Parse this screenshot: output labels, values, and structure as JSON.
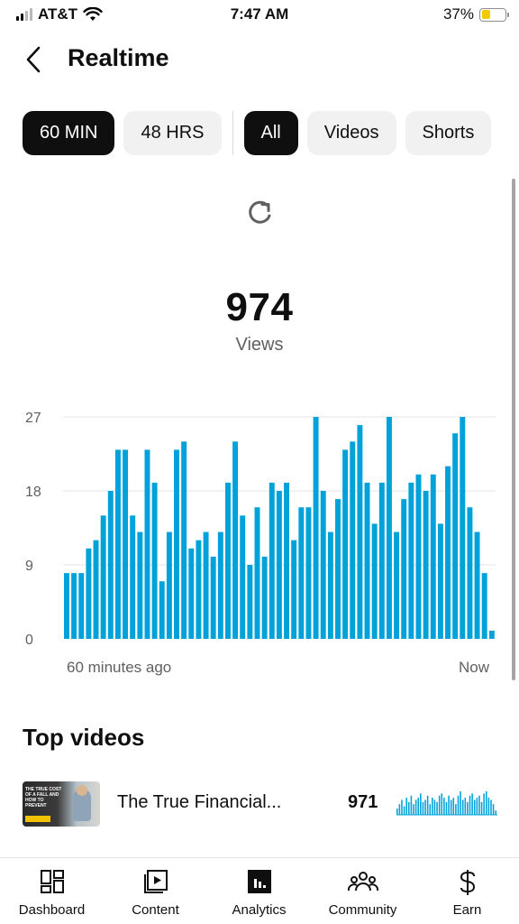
{
  "status_bar": {
    "carrier": "AT&T",
    "time": "7:47 AM",
    "battery_percent": "37%",
    "battery_level": 0.37,
    "battery_color": "#f5c900"
  },
  "header": {
    "title": "Realtime",
    "back_icon": "chevron-left-icon"
  },
  "chips": {
    "time_range": [
      {
        "label": "60 MIN",
        "selected": true
      },
      {
        "label": "48 HRS",
        "selected": false
      }
    ],
    "content_type": [
      {
        "label": "All",
        "selected": true
      },
      {
        "label": "Videos",
        "selected": false
      },
      {
        "label": "Shorts",
        "selected": false
      }
    ]
  },
  "summary": {
    "refresh_icon": "refresh-icon",
    "views_count": "974",
    "views_label": "Views"
  },
  "chart_data": {
    "type": "bar",
    "x_start_label": "60 minutes ago",
    "x_end_label": "Now",
    "y_ticks": [
      0,
      9,
      18,
      27
    ],
    "ylim": [
      0,
      27
    ],
    "grid": true,
    "bar_color": "#00a2d9",
    "values": [
      8,
      8,
      8,
      11,
      12,
      15,
      18,
      23,
      23,
      15,
      13,
      23,
      19,
      7,
      13,
      23,
      24,
      11,
      12,
      13,
      10,
      13,
      19,
      24,
      15,
      9,
      16,
      10,
      19,
      18,
      19,
      12,
      16,
      16,
      27,
      18,
      13,
      17,
      23,
      24,
      26,
      19,
      14,
      19,
      27,
      13,
      17,
      19,
      20,
      18,
      20,
      14,
      21,
      25,
      27,
      16,
      13,
      8,
      1
    ]
  },
  "top_videos": {
    "title": "Top videos",
    "items": [
      {
        "title": "The True Financial...",
        "views": "971",
        "thumbnail_text": "THE TRUE COST OF A FALL AND HOW TO PREVENT",
        "sparkline": [
          3,
          5,
          7,
          4,
          8,
          6,
          9,
          5,
          7,
          8,
          10,
          6,
          7,
          9,
          5,
          8,
          7,
          6,
          9,
          10,
          8,
          6,
          9,
          7,
          8,
          5,
          9,
          11,
          7,
          8,
          6,
          9,
          10,
          7,
          8,
          9,
          6,
          10,
          11,
          8,
          7,
          5,
          2
        ]
      }
    ]
  },
  "bottom_nav": {
    "items": [
      {
        "label": "Dashboard",
        "icon": "dashboard-icon"
      },
      {
        "label": "Content",
        "icon": "content-icon"
      },
      {
        "label": "Analytics",
        "icon": "analytics-icon",
        "selected": true
      },
      {
        "label": "Community",
        "icon": "community-icon"
      },
      {
        "label": "Earn",
        "icon": "dollar-icon"
      }
    ]
  }
}
